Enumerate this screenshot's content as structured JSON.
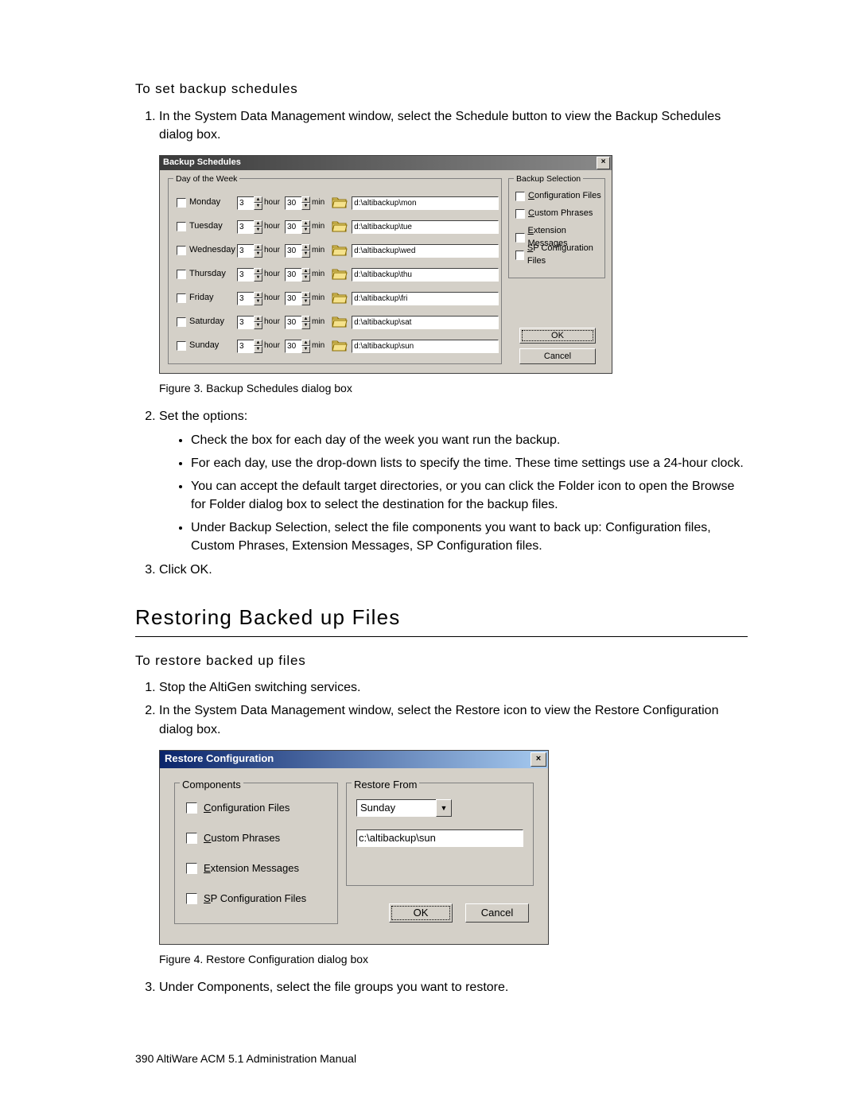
{
  "text": {
    "subheading1": "To set backup schedules",
    "step1_1": "In the System Data Management window, select the Schedule button to view the Backup Schedules dialog box.",
    "fig3": "Figure 3.   Backup Schedules dialog box",
    "step1_2": "Set the options:",
    "b1": "Check the box for each day of the week you want run the backup.",
    "b2": "For each day, use the drop-down lists to specify the time. These time settings use a 24-hour clock.",
    "b3": "You can accept the default target directories, or you can click the Folder icon to open the Browse for Folder dialog box to select the destination for the backup files.",
    "b4": "Under Backup Selection, select the file components you want to back up: Configuration files, Custom Phrases, Extension Messages, SP Configuration files.",
    "step1_3": "Click OK.",
    "h2": "Restoring Backed up Files",
    "subheading2": "To restore backed up files",
    "step2_1": "Stop the AltiGen switching services.",
    "step2_2": "In the System Data Management window, select the Restore icon to view the Restore Configuration dialog box.",
    "fig4": "Figure 4.   Restore Configuration dialog box",
    "step2_3": "Under Components, select the file groups you want to restore.",
    "footer": "390   AltiWare ACM 5.1 Administration Manual"
  },
  "dlg1": {
    "title": "Backup Schedules",
    "gb_days": "Day of the Week",
    "gb_sel": "Backup Selection",
    "hour_unit": "hour",
    "min_unit": "min",
    "ok": "OK",
    "cancel": "Cancel",
    "days": [
      {
        "label": "Monday",
        "h": "3",
        "m": "30",
        "path": "d:\\altibackup\\mon"
      },
      {
        "label": "Tuesday",
        "h": "3",
        "m": "30",
        "path": "d:\\altibackup\\tue"
      },
      {
        "label": "Wednesday",
        "h": "3",
        "m": "30",
        "path": "d:\\altibackup\\wed"
      },
      {
        "label": "Thursday",
        "h": "3",
        "m": "30",
        "path": "d:\\altibackup\\thu"
      },
      {
        "label": "Friday",
        "h": "3",
        "m": "30",
        "path": "d:\\altibackup\\fri"
      },
      {
        "label": "Saturday",
        "h": "3",
        "m": "30",
        "path": "d:\\altibackup\\sat"
      },
      {
        "label": "Sunday",
        "h": "3",
        "m": "30",
        "path": "d:\\altibackup\\sun"
      }
    ],
    "sel": [
      "Configuration Files",
      "Custom Phrases",
      "Extension Messages",
      "SP Configuration Files"
    ]
  },
  "dlg2": {
    "title": "Restore Configuration",
    "gb_comp": "Components",
    "gb_from": "Restore From",
    "comp": [
      "Configuration Files",
      "Custom Phrases",
      "Extension Messages",
      "SP Configuration Files"
    ],
    "combo_value": "Sunday",
    "from_path": "c:\\altibackup\\sun",
    "ok": "OK",
    "cancel": "Cancel"
  },
  "style": {
    "row_top_start": 20,
    "row_spacing": 30,
    "sel_top_start": 14,
    "sel_spacing": 22,
    "comp_top_start": 22,
    "comp_spacing": 38,
    "folder_fill": "#f5e28c",
    "folder_stroke": "#8a6d00"
  }
}
